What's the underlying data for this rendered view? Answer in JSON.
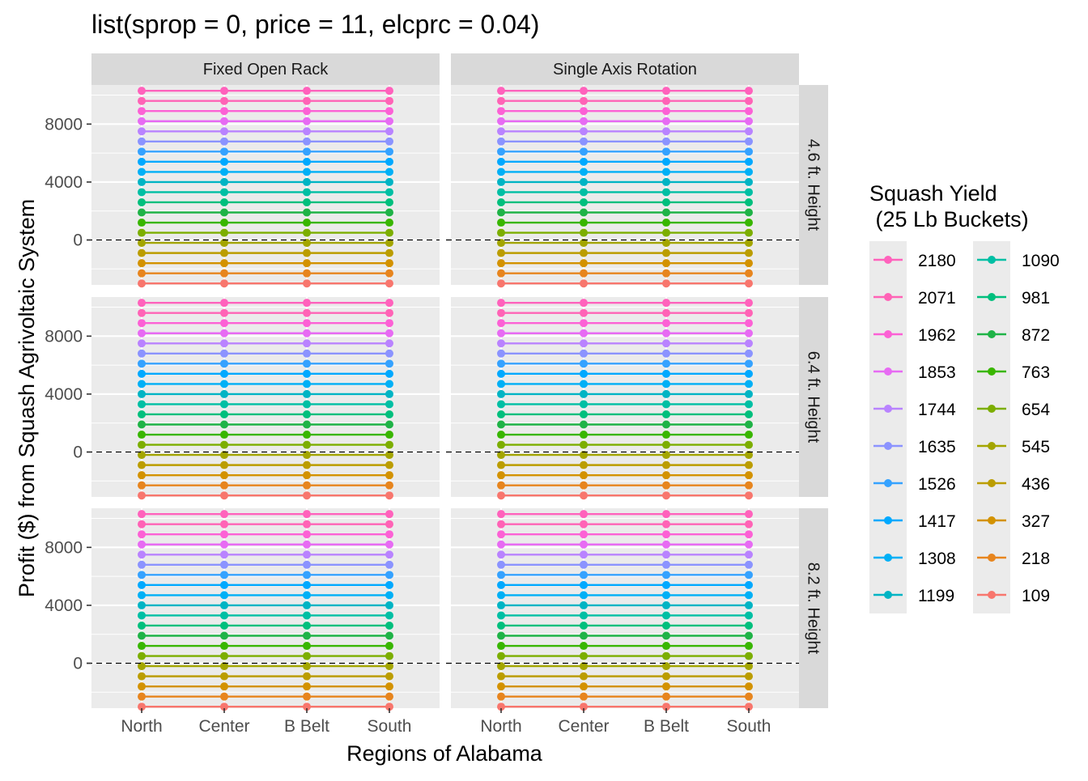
{
  "chart_data": {
    "type": "line",
    "title": "list(sprop = 0, price = 11, elcprc = 0.04)",
    "xlabel": "Regions of Alabama",
    "ylabel": "Profit ($) from Squash Agrivoltaic System",
    "categories": [
      "North",
      "Center",
      "B Belt",
      "South"
    ],
    "y_ticks": [
      0,
      4000,
      8000
    ],
    "ylim": [
      -3100,
      10700
    ],
    "grid": true,
    "reference_line": {
      "y": 0,
      "style": "dashed"
    },
    "facet_columns": [
      "Fixed Open Rack",
      "Single Axis Rotation"
    ],
    "facet_rows": [
      "4.6 ft. Height",
      "6.4 ft. Height",
      "8.2 ft. Height"
    ],
    "legend": {
      "title_lines": [
        "Squash Yield",
        " (25 Lb Buckets)"
      ],
      "placement": "right"
    },
    "series": [
      {
        "name": "2180",
        "color": "#FF62BC",
        "value": 10300
      },
      {
        "name": "2071",
        "color": "#FF63B6",
        "value": 9600
      },
      {
        "name": "1962",
        "color": "#FC61D5",
        "value": 8900
      },
      {
        "name": "1853",
        "color": "#E76BF3",
        "value": 8200
      },
      {
        "name": "1744",
        "color": "#B983FF",
        "value": 7500
      },
      {
        "name": "1635",
        "color": "#8B93FF",
        "value": 6800
      },
      {
        "name": "1526",
        "color": "#35A2FF",
        "value": 6100
      },
      {
        "name": "1417",
        "color": "#00A9FF",
        "value": 5400
      },
      {
        "name": "1308",
        "color": "#00B0F6",
        "value": 4700
      },
      {
        "name": "1199",
        "color": "#00B4C4",
        "value": 4000
      },
      {
        "name": "1090",
        "color": "#00BFA4",
        "value": 3300
      },
      {
        "name": "981",
        "color": "#00BF7D",
        "value": 2600
      },
      {
        "name": "872",
        "color": "#1FB347",
        "value": 1900
      },
      {
        "name": "763",
        "color": "#39B600",
        "value": 1200
      },
      {
        "name": "654",
        "color": "#7CAE00",
        "value": 500
      },
      {
        "name": "545",
        "color": "#A3A500",
        "value": -200
      },
      {
        "name": "436",
        "color": "#BB9D00",
        "value": -900
      },
      {
        "name": "327",
        "color": "#D39200",
        "value": -1600
      },
      {
        "name": "218",
        "color": "#E7851E",
        "value": -2300
      },
      {
        "name": "109",
        "color": "#F8766D",
        "value": -3000
      }
    ],
    "colors": {
      "panel_background": "#EBEBEB",
      "strip_background": "#D9D9D9",
      "grid": "#FFFFFF"
    }
  }
}
